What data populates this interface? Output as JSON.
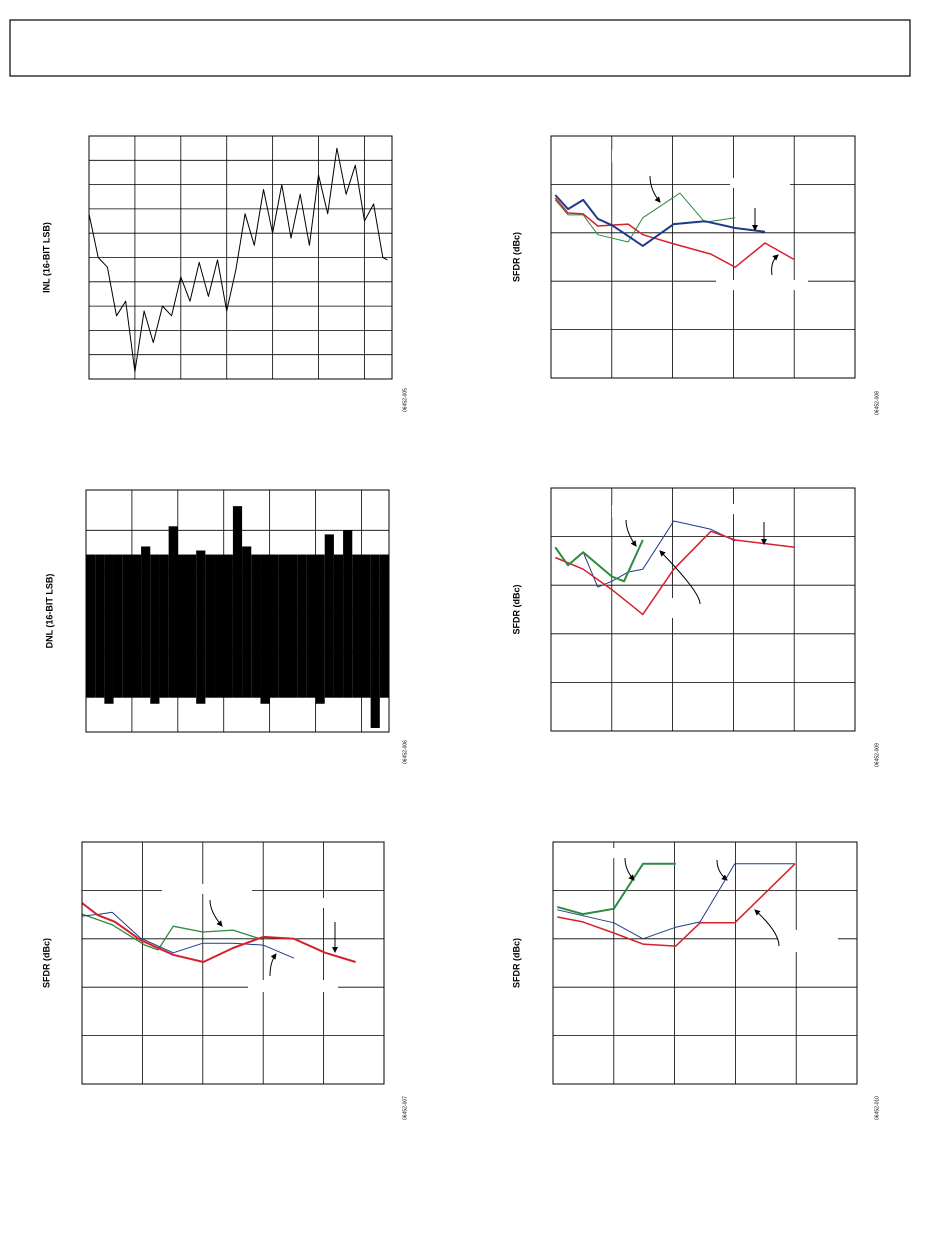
{
  "chart_data": [
    {
      "type": "line",
      "ylabel": "INL (16-BIT LSB)",
      "figure_id": "06452-005",
      "xlim": [
        0,
        6.6
      ],
      "xticks": [
        0,
        1,
        2,
        3,
        4,
        5,
        6
      ],
      "ylim": [
        0,
        10
      ],
      "yticks": [
        0,
        1,
        2,
        3,
        4,
        5,
        6,
        7,
        8,
        9,
        10
      ],
      "grid": true,
      "tick_labels": false,
      "series": [
        {
          "color": "#000000",
          "line_width": 1,
          "x": [
            0,
            0.2,
            0.4,
            0.6,
            0.8,
            1.0,
            1.2,
            1.4,
            1.6,
            1.8,
            2.0,
            2.2,
            2.4,
            2.6,
            2.8,
            3.0,
            3.2,
            3.4,
            3.6,
            3.8,
            4.0,
            4.2,
            4.4,
            4.6,
            4.8,
            5.0,
            5.2,
            5.4,
            5.6,
            5.8,
            6.0,
            6.2,
            6.4,
            6.5
          ],
          "values": [
            6.8,
            5.0,
            4.6,
            2.6,
            3.2,
            0.3,
            2.8,
            1.5,
            3.0,
            2.6,
            4.2,
            3.2,
            4.8,
            3.4,
            4.9,
            2.8,
            4.5,
            6.8,
            5.5,
            7.8,
            6.0,
            8.0,
            5.8,
            7.6,
            5.5,
            8.4,
            6.8,
            9.5,
            7.6,
            8.8,
            6.5,
            7.2,
            5.0,
            4.9
          ]
        }
      ]
    },
    {
      "type": "range",
      "ylabel": "DNL (16-BIT LSB)",
      "figure_id": "06452-006",
      "xlim": [
        0,
        6.6
      ],
      "xticks": [
        0,
        1,
        2,
        3,
        4,
        5,
        6
      ],
      "ylim": [
        0,
        6
      ],
      "yticks": [
        0,
        1,
        2,
        3,
        4,
        5,
        6
      ],
      "grid": true,
      "tick_labels": false,
      "color": "#000000",
      "x": [
        0,
        0.2,
        0.4,
        0.6,
        0.8,
        1.0,
        1.2,
        1.4,
        1.6,
        1.8,
        2.0,
        2.2,
        2.4,
        2.6,
        2.8,
        3.0,
        3.2,
        3.4,
        3.6,
        3.8,
        4.0,
        4.2,
        4.4,
        4.6,
        4.8,
        5.0,
        5.2,
        5.4,
        5.6,
        5.8,
        6.0,
        6.2,
        6.4
      ],
      "low": [
        0.85,
        0.85,
        0.7,
        0.85,
        0.85,
        0.85,
        0.85,
        0.7,
        0.85,
        0.85,
        0.85,
        0.85,
        0.7,
        0.85,
        0.85,
        0.85,
        0.85,
        0.85,
        0.85,
        0.7,
        0.85,
        0.85,
        0.85,
        0.85,
        0.85,
        0.7,
        0.85,
        0.85,
        0.85,
        0.85,
        0.85,
        0.1,
        0.85
      ],
      "high": [
        4.4,
        4.4,
        4.4,
        4.4,
        4.4,
        4.4,
        4.6,
        4.4,
        4.4,
        5.1,
        4.4,
        4.4,
        4.5,
        4.4,
        4.4,
        4.4,
        5.6,
        4.6,
        4.4,
        4.4,
        4.4,
        4.4,
        4.4,
        4.4,
        4.4,
        4.4,
        4.9,
        4.4,
        5.0,
        4.4,
        4.4,
        4.4,
        4.4
      ]
    },
    {
      "type": "line",
      "ylabel": "SFDR (dBc)",
      "figure_id": "06452-007",
      "xlim": [
        0,
        5
      ],
      "xticks": [
        0,
        1,
        2,
        3,
        4,
        5
      ],
      "ylim": [
        0,
        5
      ],
      "yticks": [
        0,
        1,
        2,
        3,
        4,
        5
      ],
      "grid": true,
      "tick_labels": false,
      "series": [
        {
          "color": "#2e8b3e",
          "line_width": 1.3,
          "x": [
            0,
            0.5,
            1.04,
            1.26,
            1.51,
            2.0,
            2.5,
            3.0
          ],
          "values": [
            3.51,
            3.29,
            2.87,
            2.77,
            3.26,
            3.14,
            3.18,
            2.98
          ]
        },
        {
          "color": "#1f3a8a",
          "line_width": 1,
          "x": [
            0,
            0.3,
            0.5,
            0.96,
            1.51,
            2.0,
            2.5,
            3.0,
            3.51
          ],
          "values": [
            3.47,
            3.51,
            3.55,
            3.02,
            2.71,
            2.91,
            2.91,
            2.87,
            2.6
          ]
        },
        {
          "color": "#d6202e",
          "line_width": 2,
          "x": [
            0,
            0.26,
            0.55,
            0.96,
            1.51,
            2.01,
            2.5,
            3.0,
            3.51,
            4.03,
            4.53
          ],
          "values": [
            3.74,
            3.49,
            3.35,
            2.98,
            2.67,
            2.52,
            2.81,
            3.04,
            3.0,
            2.71,
            2.52
          ]
        }
      ]
    },
    {
      "type": "line",
      "ylabel": "SFDR (dBc)",
      "figure_id": "06452-008",
      "xlim": [
        0,
        5
      ],
      "xticks": [
        0,
        1,
        2,
        3,
        4,
        5
      ],
      "ylim": [
        0,
        5
      ],
      "yticks": [
        0,
        1,
        2,
        3,
        4,
        5
      ],
      "grid": true,
      "tick_labels": false,
      "series": [
        {
          "color": "#2e8b3e",
          "line_width": 1,
          "x": [
            0.07,
            0.28,
            0.53,
            0.77,
            1.27,
            1.51,
            2.12,
            2.53,
            3.03
          ],
          "values": [
            3.68,
            3.37,
            3.37,
            2.96,
            2.81,
            3.31,
            3.82,
            3.22,
            3.31
          ]
        },
        {
          "color": "#d6202e",
          "line_width": 1.5,
          "x": [
            0.07,
            0.28,
            0.53,
            0.77,
            1.27,
            1.51,
            2.02,
            2.63,
            3.03,
            3.52,
            4.01
          ],
          "values": [
            3.72,
            3.41,
            3.39,
            3.14,
            3.18,
            2.96,
            2.77,
            2.56,
            2.29,
            2.79,
            2.44
          ]
        },
        {
          "color": "#1f3a8a",
          "line_width": 2,
          "x": [
            0.07,
            0.28,
            0.53,
            0.77,
            1.0,
            1.51,
            2.02,
            2.53,
            3.03,
            3.52
          ],
          "values": [
            3.78,
            3.49,
            3.68,
            3.29,
            3.16,
            2.73,
            3.18,
            3.24,
            3.1,
            3.02
          ]
        }
      ]
    },
    {
      "type": "line",
      "ylabel": "SFDR (dBc)",
      "figure_id": "06452-009",
      "xlim": [
        0,
        5
      ],
      "xticks": [
        0,
        1,
        2,
        3,
        4,
        5
      ],
      "ylim": [
        0,
        5
      ],
      "yticks": [
        0,
        1,
        2,
        3,
        4,
        5
      ],
      "grid": true,
      "tick_labels": false,
      "series": [
        {
          "color": "#1f3a8a",
          "line_width": 1,
          "x": [
            0.07,
            0.28,
            0.53,
            0.77,
            1.0,
            1.27,
            1.51,
            2.02,
            2.63,
            3.03
          ],
          "values": [
            3.78,
            3.41,
            3.68,
            2.96,
            3.08,
            3.27,
            3.33,
            4.32,
            4.15,
            3.91
          ]
        },
        {
          "color": "#d6202e",
          "line_width": 1.5,
          "x": [
            0.07,
            0.53,
            1.0,
            1.51,
            2.02,
            2.63,
            3.03,
            4.01
          ],
          "values": [
            3.57,
            3.33,
            2.91,
            2.4,
            3.33,
            4.11,
            3.93,
            3.78
          ]
        },
        {
          "color": "#2e8b3e",
          "line_width": 2,
          "x": [
            0.07,
            0.28,
            0.53,
            1.0,
            1.2,
            1.51
          ],
          "values": [
            3.78,
            3.41,
            3.68,
            3.18,
            3.08,
            3.93
          ]
        }
      ]
    },
    {
      "type": "line",
      "ylabel": "SFDR (dBc)",
      "figure_id": "06452-010",
      "xlim": [
        0,
        5
      ],
      "xticks": [
        0,
        1,
        2,
        3,
        4,
        5
      ],
      "ylim": [
        0,
        5
      ],
      "yticks": [
        0,
        1,
        2,
        3,
        4,
        5
      ],
      "grid": true,
      "tick_labels": false,
      "series": [
        {
          "color": "#1f3a8a",
          "line_width": 1,
          "x": [
            0.07,
            1.0,
            1.48,
            2.02,
            2.42,
            2.99,
            3.98
          ],
          "values": [
            3.6,
            3.33,
            3.0,
            3.24,
            3.35,
            4.55,
            4.55
          ]
        },
        {
          "color": "#d6202e",
          "line_width": 1.5,
          "x": [
            0.07,
            0.49,
            1.0,
            1.48,
            2.02,
            2.42,
            2.99,
            3.98
          ],
          "values": [
            3.45,
            3.35,
            3.12,
            2.89,
            2.85,
            3.33,
            3.33,
            4.55
          ]
        },
        {
          "color": "#2e8b3e",
          "line_width": 2,
          "x": [
            0.07,
            0.49,
            1.0,
            1.48,
            2.02
          ],
          "values": [
            3.66,
            3.51,
            3.62,
            4.55,
            4.55
          ]
        }
      ]
    }
  ]
}
